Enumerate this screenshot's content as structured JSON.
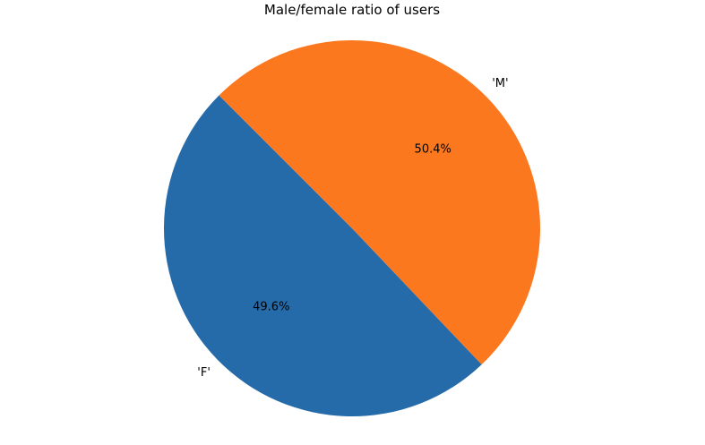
{
  "chart_data": {
    "type": "pie",
    "title": "Male/female ratio of users",
    "categories": [
      "'F'",
      "'M'"
    ],
    "values": [
      49.6,
      50.4
    ],
    "percent_labels": [
      "49.6%",
      "50.4%"
    ],
    "colors": [
      "#256baa",
      "#fc781f"
    ],
    "legend": "none"
  }
}
